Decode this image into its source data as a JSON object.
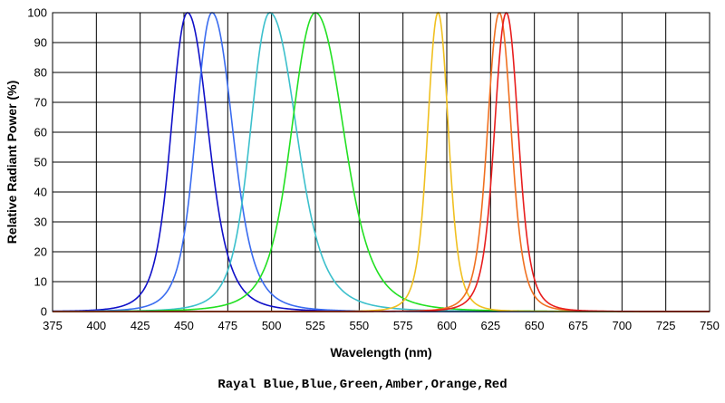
{
  "caption": "Rayal Blue,Blue,Green,Amber,Orange,Red",
  "chart_data": {
    "type": "line",
    "title": "",
    "xlabel": "Wavelength (nm)",
    "ylabel": "Relative Radiant Power (%)",
    "xlim": [
      375,
      750
    ],
    "ylim": [
      0,
      100
    ],
    "xticks": [
      "375",
      "400",
      "425",
      "450",
      "475",
      "500",
      "525",
      "550",
      "575",
      "600",
      "625",
      "650",
      "675",
      "700",
      "725",
      "750"
    ],
    "yticks": [
      "0",
      "10",
      "20",
      "30",
      "40",
      "50",
      "60",
      "70",
      "80",
      "90",
      "100"
    ],
    "grid": true,
    "legend": "none",
    "series": [
      {
        "color": "#1010c8",
        "peak": 452,
        "half_width_left": 11,
        "half_width_right": 14,
        "values_note_x": [
          400,
          425,
          440,
          452,
          465,
          475,
          500,
          525
        ],
        "values": [
          1,
          6,
          45,
          100,
          48,
          25,
          5,
          1
        ]
      },
      {
        "color": "#3a6cf0",
        "peak": 466,
        "half_width_left": 11,
        "half_width_right": 14,
        "values_note_x": [
          425,
          440,
          452,
          466,
          480,
          500,
          525
        ],
        "values": [
          2,
          10,
          48,
          100,
          48,
          13,
          2
        ]
      },
      {
        "color": "#3cc0cc",
        "peak": 499,
        "half_width_left": 13,
        "half_width_right": 18,
        "values_note_x": [
          450,
          475,
          490,
          499,
          510,
          525,
          550,
          575
        ],
        "values": [
          1,
          12,
          55,
          100,
          72,
          33,
          9,
          2
        ]
      },
      {
        "color": "#22e022",
        "peak": 525,
        "half_width_left": 16,
        "half_width_right": 19,
        "values_note_x": [
          475,
          500,
          515,
          525,
          540,
          550,
          575,
          600
        ],
        "values": [
          2,
          14,
          62,
          100,
          70,
          45,
          11,
          2
        ]
      },
      {
        "color": "#f0c020",
        "peak": 595,
        "half_width_left": 7,
        "half_width_right": 7,
        "values_note_x": [
          570,
          580,
          590,
          595,
          600,
          610,
          620
        ],
        "values": [
          3,
          20,
          70,
          100,
          70,
          13,
          2
        ]
      },
      {
        "color": "#f07020",
        "peak": 630,
        "half_width_left": 8,
        "half_width_right": 8,
        "values_note_x": [
          600,
          615,
          625,
          630,
          635,
          645,
          660
        ],
        "values": [
          4,
          30,
          80,
          100,
          80,
          22,
          3
        ]
      },
      {
        "color": "#e81e1e",
        "peak": 634,
        "half_width_left": 8,
        "half_width_right": 8,
        "values_note_x": [
          605,
          620,
          630,
          634,
          640,
          650,
          665
        ],
        "values": [
          4,
          30,
          85,
          100,
          75,
          18,
          2
        ]
      }
    ]
  }
}
